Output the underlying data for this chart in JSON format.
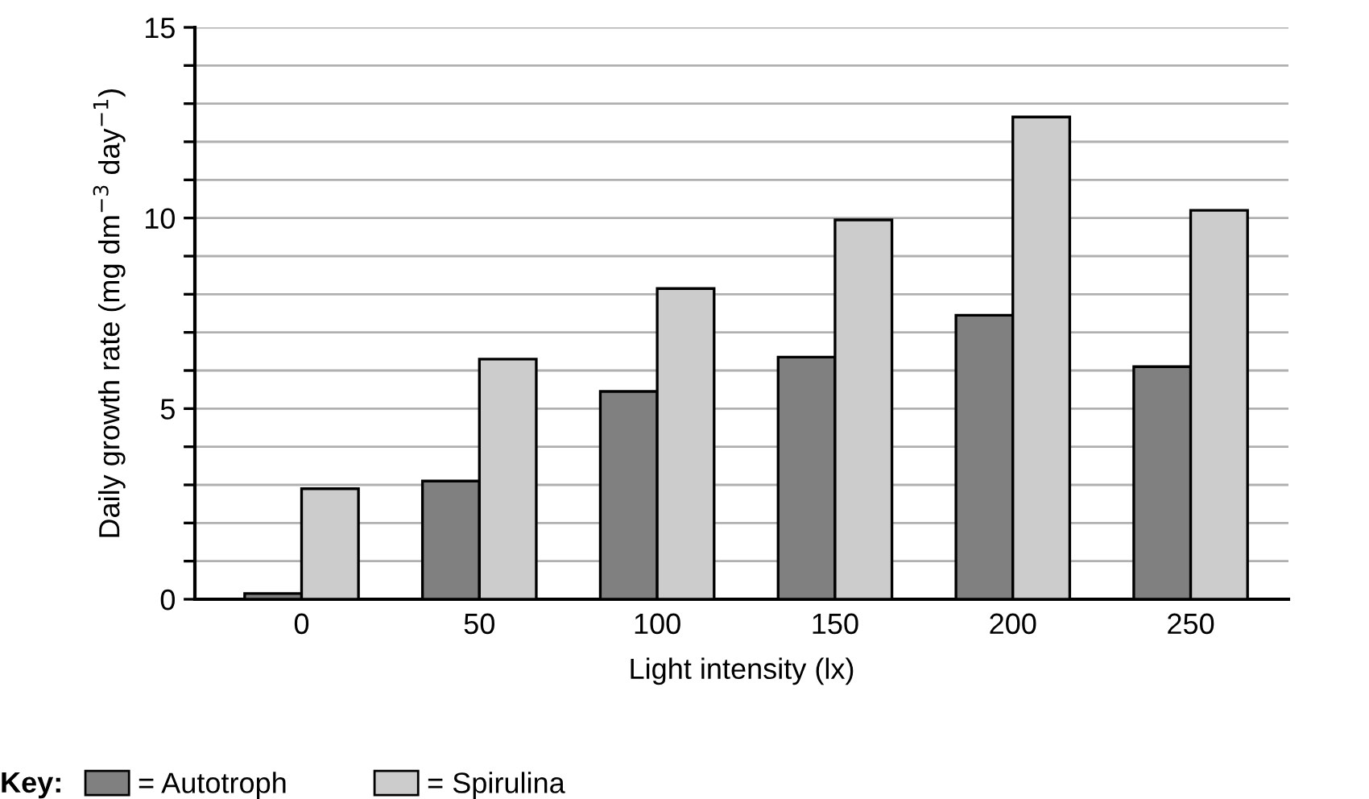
{
  "chart_data": {
    "type": "bar",
    "xlabel": "Light intensity (lx)",
    "ylabel": "Daily growth rate (mg dm$^{−3}$ day$^{−1}$)",
    "legend_title": "Key:",
    "categories": [
      "0",
      "50",
      "100",
      "150",
      "200",
      "250"
    ],
    "series": [
      {
        "name": "= Autotroph",
        "color": "#808080",
        "values": [
          0.15,
          3.1,
          5.45,
          6.35,
          7.45,
          6.1
        ]
      },
      {
        "name": "= Spirulina",
        "color": "#cccccc",
        "values": [
          2.9,
          6.3,
          8.15,
          9.95,
          12.65,
          10.2
        ]
      }
    ],
    "ylim": [
      0,
      15
    ],
    "yticks": [
      0,
      {
        "value": 1,
        "label": null
      },
      {
        "value": 2,
        "label": null
      },
      {
        "value": 3,
        "label": null
      },
      {
        "value": 4,
        "label": null
      },
      5,
      {
        "value": 6,
        "label": null
      },
      {
        "value": 7,
        "label": null
      },
      {
        "value": 8,
        "label": null
      },
      {
        "value": 9,
        "label": null
      },
      10,
      {
        "value": 11,
        "label": null
      },
      {
        "value": 12,
        "label": null
      },
      {
        "value": 13,
        "label": null
      },
      {
        "value": 14,
        "label": null
      },
      15
    ],
    "grid": "y",
    "legend": "bottom"
  }
}
